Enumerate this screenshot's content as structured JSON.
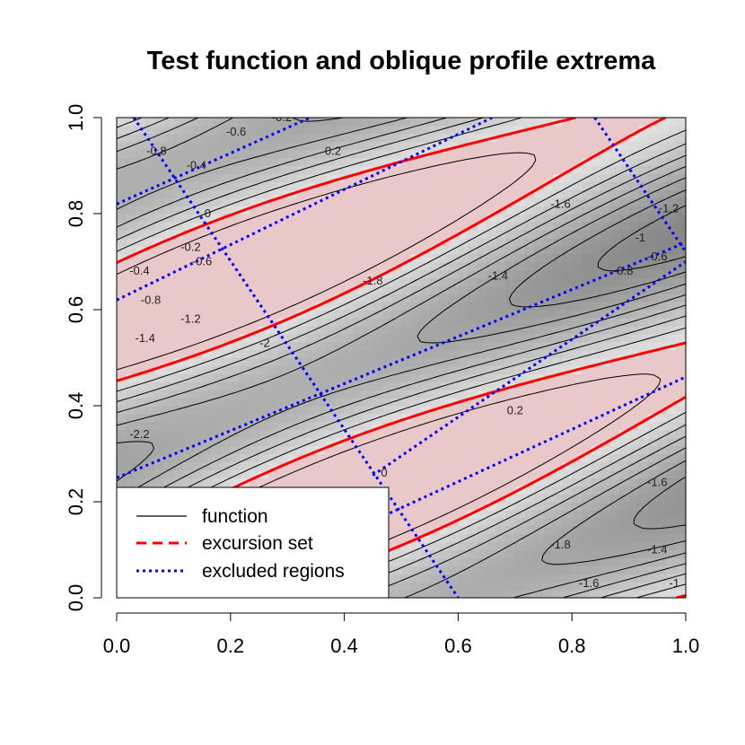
{
  "chart_data": {
    "type": "contour",
    "title": "Test function and oblique profile extrema",
    "xlabel": "",
    "ylabel": "",
    "xlim": [
      0,
      1
    ],
    "ylim": [
      0,
      1
    ],
    "x_ticks": [
      "0.0",
      "0.2",
      "0.4",
      "0.6",
      "0.8",
      "1.0"
    ],
    "y_ticks": [
      "0.0",
      "0.2",
      "0.4",
      "0.6",
      "0.8",
      "1.0"
    ],
    "contour_levels": [
      "-2.2",
      "-2",
      "-1.8",
      "-1.6",
      "-1.4",
      "-1.2",
      "-1",
      "-0.8",
      "-0.6",
      "-0.4",
      "-0.2",
      "0",
      "0.2"
    ],
    "excursion_threshold": 0,
    "legend": {
      "position": "bottom-left",
      "entries": [
        {
          "label": "function",
          "style": "solid",
          "color": "#000000"
        },
        {
          "label": "excursion set",
          "style": "dashed",
          "color": "#ff0000"
        },
        {
          "label": "excluded regions",
          "style": "dotted",
          "color": "#0000ff"
        }
      ]
    },
    "colors": {
      "excursion_fill": "#e8c8c8",
      "excursion_line": "#ff0000",
      "excluded_line": "#0000ff",
      "contour_line": "#000000"
    }
  }
}
